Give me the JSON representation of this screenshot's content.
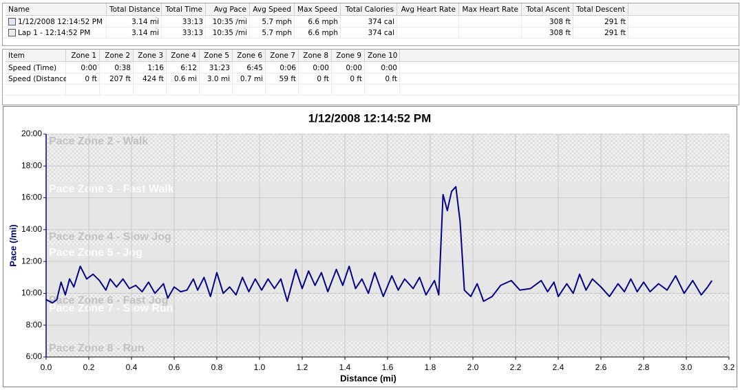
{
  "summary_table": {
    "headers": [
      "Name",
      "Total Distance",
      "Total Time",
      "Avg Pace",
      "Avg Speed",
      "Max Speed",
      "Total Calories",
      "Avg Heart Rate",
      "Max Heart Rate",
      "Total Ascent",
      "Total Descent"
    ],
    "rows": [
      [
        "1/12/2008 12:14:52 PM",
        "3.14 mi",
        "33:13",
        "10:35 /mi",
        "5.7 mph",
        "6.6 mph",
        "374 cal",
        null,
        null,
        "308 ft",
        "291 ft"
      ],
      [
        "Lap 1 - 12:14:52 PM",
        "3.14 mi",
        "33:13",
        "10:35 /mi",
        "5.7 mph",
        "6.6 mph",
        "374 cal",
        null,
        null,
        "308 ft",
        "291 ft"
      ]
    ]
  },
  "zones_table": {
    "headers": [
      "Item",
      "Zone 1",
      "Zone 2",
      "Zone 3",
      "Zone 4",
      "Zone 5",
      "Zone 6",
      "Zone 7",
      "Zone 8",
      "Zone 9",
      "Zone 10"
    ],
    "rows": [
      [
        "Speed (Time)",
        "0:00",
        "0:38",
        "1:16",
        "6:12",
        "31:23",
        "6:45",
        "0:06",
        "0:00",
        "0:00",
        "0:00"
      ],
      [
        "Speed (Distance)",
        "0 ft",
        "207 ft",
        "424 ft",
        "0.6 mi",
        "3.0 mi",
        "0.7 mi",
        "59 ft",
        "0 ft",
        "0 ft",
        "0 ft"
      ]
    ]
  },
  "chart_data": {
    "type": "line",
    "title": "1/12/2008 12:14:52 PM",
    "x_label": "Distance (mi)",
    "y_label": "Pace (/mi)",
    "xlim": [
      0,
      3.2
    ],
    "xticks": [
      {
        "value": 0,
        "label": "0.0"
      },
      0.2,
      0.4,
      0.6,
      0.8,
      {
        "value": 1,
        "label": "1.0"
      },
      1.2,
      1.4,
      1.6,
      1.8,
      {
        "value": 2,
        "label": "2.0"
      },
      2.2,
      2.4,
      2.6,
      2.8,
      {
        "value": 3,
        "label": "3.0"
      },
      3.2
    ],
    "ylim": [
      6,
      20
    ],
    "yticks": [
      {
        "value": 6,
        "label": "6:00"
      },
      {
        "value": 8,
        "label": "8:00"
      },
      {
        "value": 10,
        "label": "10:00"
      },
      {
        "value": 12,
        "label": "12:00"
      },
      {
        "value": 14,
        "label": "14:00"
      },
      {
        "value": 16,
        "label": "16:00"
      },
      {
        "value": 18,
        "label": "18:00"
      },
      {
        "value": 20,
        "label": "20:00"
      }
    ],
    "grid": true,
    "zones": [
      {
        "label": "Pace Zone 2 - Walk",
        "range": [
          17,
          20
        ]
      },
      {
        "label": "Pace Zone 3 - Fast Walk",
        "range": [
          14,
          17
        ]
      },
      {
        "label": "Pace Zone 4 - Slow Jog",
        "range": [
          13,
          14
        ]
      },
      {
        "label": "Pace Zone 5 - Jog",
        "range": [
          10,
          13
        ]
      },
      {
        "label": "Pace Zone 6 - Fast Jog",
        "range": [
          9.5,
          10
        ]
      },
      {
        "label": "Pace Zone 7 - Slow Run",
        "range": [
          7,
          9.5
        ]
      },
      {
        "label": "Pace Zone 8 - Run",
        "range": [
          6,
          7
        ]
      }
    ],
    "x": [
      0,
      0.03,
      0.05,
      0.07,
      0.09,
      0.11,
      0.13,
      0.16,
      0.19,
      0.22,
      0.25,
      0.28,
      0.3,
      0.33,
      0.36,
      0.39,
      0.42,
      0.45,
      0.48,
      0.51,
      0.55,
      0.57,
      0.6,
      0.63,
      0.66,
      0.69,
      0.71,
      0.74,
      0.77,
      0.8,
      0.83,
      0.86,
      0.89,
      0.92,
      0.95,
      0.98,
      1.01,
      1.04,
      1.07,
      1.1,
      1.13,
      1.17,
      1.2,
      1.23,
      1.26,
      1.29,
      1.32,
      1.36,
      1.39,
      1.42,
      1.45,
      1.48,
      1.51,
      1.54,
      1.58,
      1.62,
      1.65,
      1.68,
      1.72,
      1.75,
      1.78,
      1.82,
      1.84,
      1.86,
      1.88,
      1.9,
      1.92,
      1.94,
      1.96,
      1.99,
      2.02,
      2.05,
      2.09,
      2.13,
      2.18,
      2.22,
      2.27,
      2.32,
      2.35,
      2.38,
      2.4,
      2.44,
      2.47,
      2.5,
      2.53,
      2.56,
      2.6,
      2.64,
      2.68,
      2.71,
      2.74,
      2.77,
      2.8,
      2.83,
      2.87,
      2.91,
      2.95,
      2.99,
      3.03,
      3.07,
      3.1,
      3.12
    ],
    "series": [
      {
        "name": "Pace",
        "color": "#00008b",
        "values": [
          9.6,
          9.4,
          9.6,
          10.7,
          9.9,
          10.9,
          10.4,
          11.7,
          10.9,
          11.2,
          10.8,
          10.2,
          10.9,
          10.4,
          10.9,
          10.3,
          10.5,
          10.1,
          10.7,
          10.0,
          10.6,
          9.7,
          10.4,
          10.1,
          10.2,
          10.9,
          10.2,
          11.0,
          9.8,
          11.3,
          10.0,
          10.4,
          9.9,
          11.0,
          10.1,
          10.9,
          10.2,
          10.9,
          10.3,
          10.9,
          9.5,
          11.5,
          10.3,
          11.4,
          10.5,
          11.3,
          10.1,
          11.5,
          10.5,
          11.7,
          10.3,
          10.9,
          10.0,
          11.3,
          9.8,
          11.1,
          10.2,
          10.9,
          10.3,
          11.0,
          9.9,
          10.8,
          9.9,
          16.2,
          15.2,
          16.4,
          16.7,
          14.5,
          10.2,
          9.8,
          10.6,
          9.5,
          9.8,
          10.5,
          10.8,
          10.2,
          10.3,
          10.8,
          10.1,
          10.7,
          9.8,
          10.6,
          10.0,
          11.2,
          10.2,
          10.9,
          10.4,
          9.8,
          10.6,
          10.1,
          10.9,
          10.1,
          10.7,
          10.1,
          10.6,
          10.2,
          11.1,
          10.0,
          10.8,
          9.9,
          10.4,
          10.8
        ]
      }
    ]
  }
}
